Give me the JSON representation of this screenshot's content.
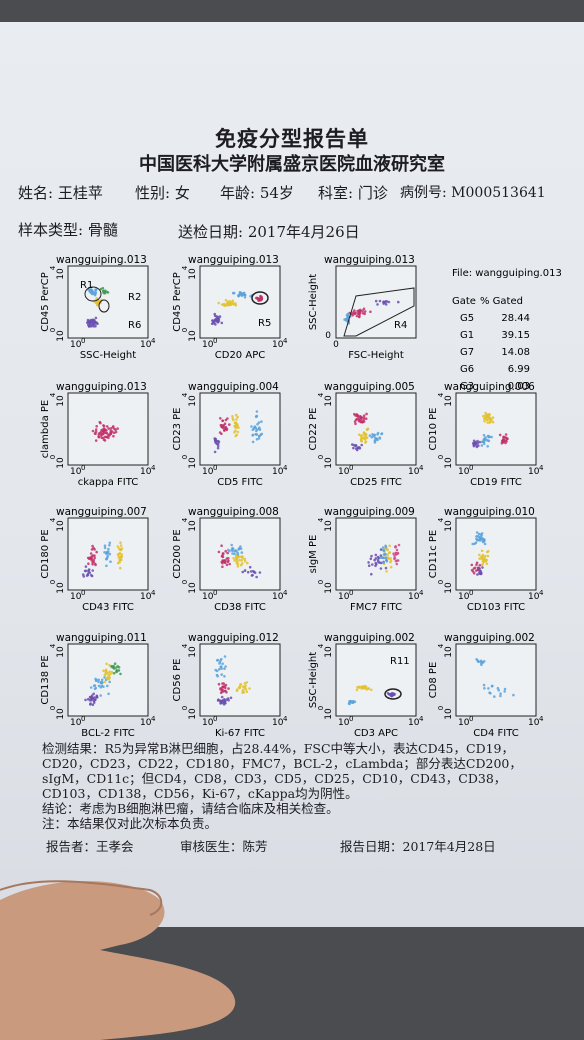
{
  "header": {
    "title": "免疫分型报告单",
    "subtitle": "中国医科大学附属盛京医院血液研究室"
  },
  "patient": {
    "name": "姓名: 王桂苹",
    "sex": "性别: 女",
    "age": "年龄: 54岁",
    "department": "科室: 门诊",
    "case_number": "病例号: M000513641"
  },
  "sample": {
    "type": "样本类型: 骨髓",
    "date": "送检日期: 2017年4月26日"
  },
  "log_tick_base": "10",
  "log_tick_exps": [
    "0",
    "4"
  ],
  "linear_ticks": [
    "0",
    "1000"
  ],
  "plots": [
    {
      "file": "wangguiping.013",
      "x_label": "SSC-Height",
      "y_label": "CD45 PerCP",
      "scale": "log",
      "gates": [
        "R1",
        "R2",
        "R6"
      ]
    },
    {
      "file": "wangguiping.013",
      "x_label": "CD20 APC",
      "y_label": "CD45 PerCP",
      "scale": "log",
      "gates": [
        "R5"
      ]
    },
    {
      "file": "wangguiping.013",
      "x_label": "FSC-Height",
      "y_label": "SSC-Height",
      "scale": "linear",
      "gates": [
        "R4"
      ]
    },
    {
      "file": "wangguiping.013",
      "x_label": "ckappa FITC",
      "y_label": "clambda PE",
      "scale": "log"
    },
    {
      "file": "wangguiping.004",
      "x_label": "CD5 FITC",
      "y_label": "CD23 PE",
      "scale": "log"
    },
    {
      "file": "wangguiping.005",
      "x_label": "CD25 FITC",
      "y_label": "CD22 PE",
      "scale": "log"
    },
    {
      "file": "wangguiping.006",
      "x_label": "CD19 FITC",
      "y_label": "CD10 PE",
      "scale": "log"
    },
    {
      "file": "wangguiping.007",
      "x_label": "CD43 FITC",
      "y_label": "CD180 PE",
      "scale": "log"
    },
    {
      "file": "wangguiping.008",
      "x_label": "CD38 FITC",
      "y_label": "CD200 PE",
      "scale": "log"
    },
    {
      "file": "wangguiping.009",
      "x_label": "FMC7 FITC",
      "y_label": "sIgM PE",
      "scale": "log"
    },
    {
      "file": "wangguiping.010",
      "x_label": "CD103 FITC",
      "y_label": "CD11c PE",
      "scale": "log"
    },
    {
      "file": "wangguiping.011",
      "x_label": "BCL-2 FITC",
      "y_label": "CD138 PE",
      "scale": "log"
    },
    {
      "file": "wangguiping.012",
      "x_label": "Ki-67 FITC",
      "y_label": "CD56 PE",
      "scale": "log"
    },
    {
      "file": "wangguiping.002",
      "x_label": "CD3 APC",
      "y_label": "SSC-Height",
      "scale": "log",
      "gates": [
        "R11"
      ]
    },
    {
      "file": "wangguiping.002",
      "x_label": "CD4 FITC",
      "y_label": "CD8 PE",
      "scale": "log"
    }
  ],
  "gate_table": {
    "file": "File: wangguiping.013",
    "headers": [
      "Gate",
      "% Gated"
    ],
    "rows": [
      [
        "G5",
        "28.44"
      ],
      [
        "G1",
        "39.15"
      ],
      [
        "G7",
        "14.08"
      ],
      [
        "G6",
        "6.99"
      ],
      [
        "G3",
        "0.03"
      ]
    ]
  },
  "results": {
    "findings": "检测结果：R5为异常B淋巴细胞，占28.44%，FSC中等大小，表达CD45，CD19，CD20，CD23，CD22，CD180，FMC7，BCL-2，cLambda；部分表达CD200，sIgM，CD11c；但CD4，CD8，CD3，CD5，CD25，CD10，CD43，CD38，CD103，CD138，CD56，Ki-67，cKappa均为阴性。",
    "conclusion": "结论：考虑为B细胞淋巴瘤，请结合临床及相关检查。",
    "note": "注：本结果仅对此次标本负责。"
  },
  "footer": {
    "reporter": "报告者：王孝会",
    "reviewer": "审核医生：陈芳",
    "report_date": "报告日期：2017年4月28日"
  }
}
